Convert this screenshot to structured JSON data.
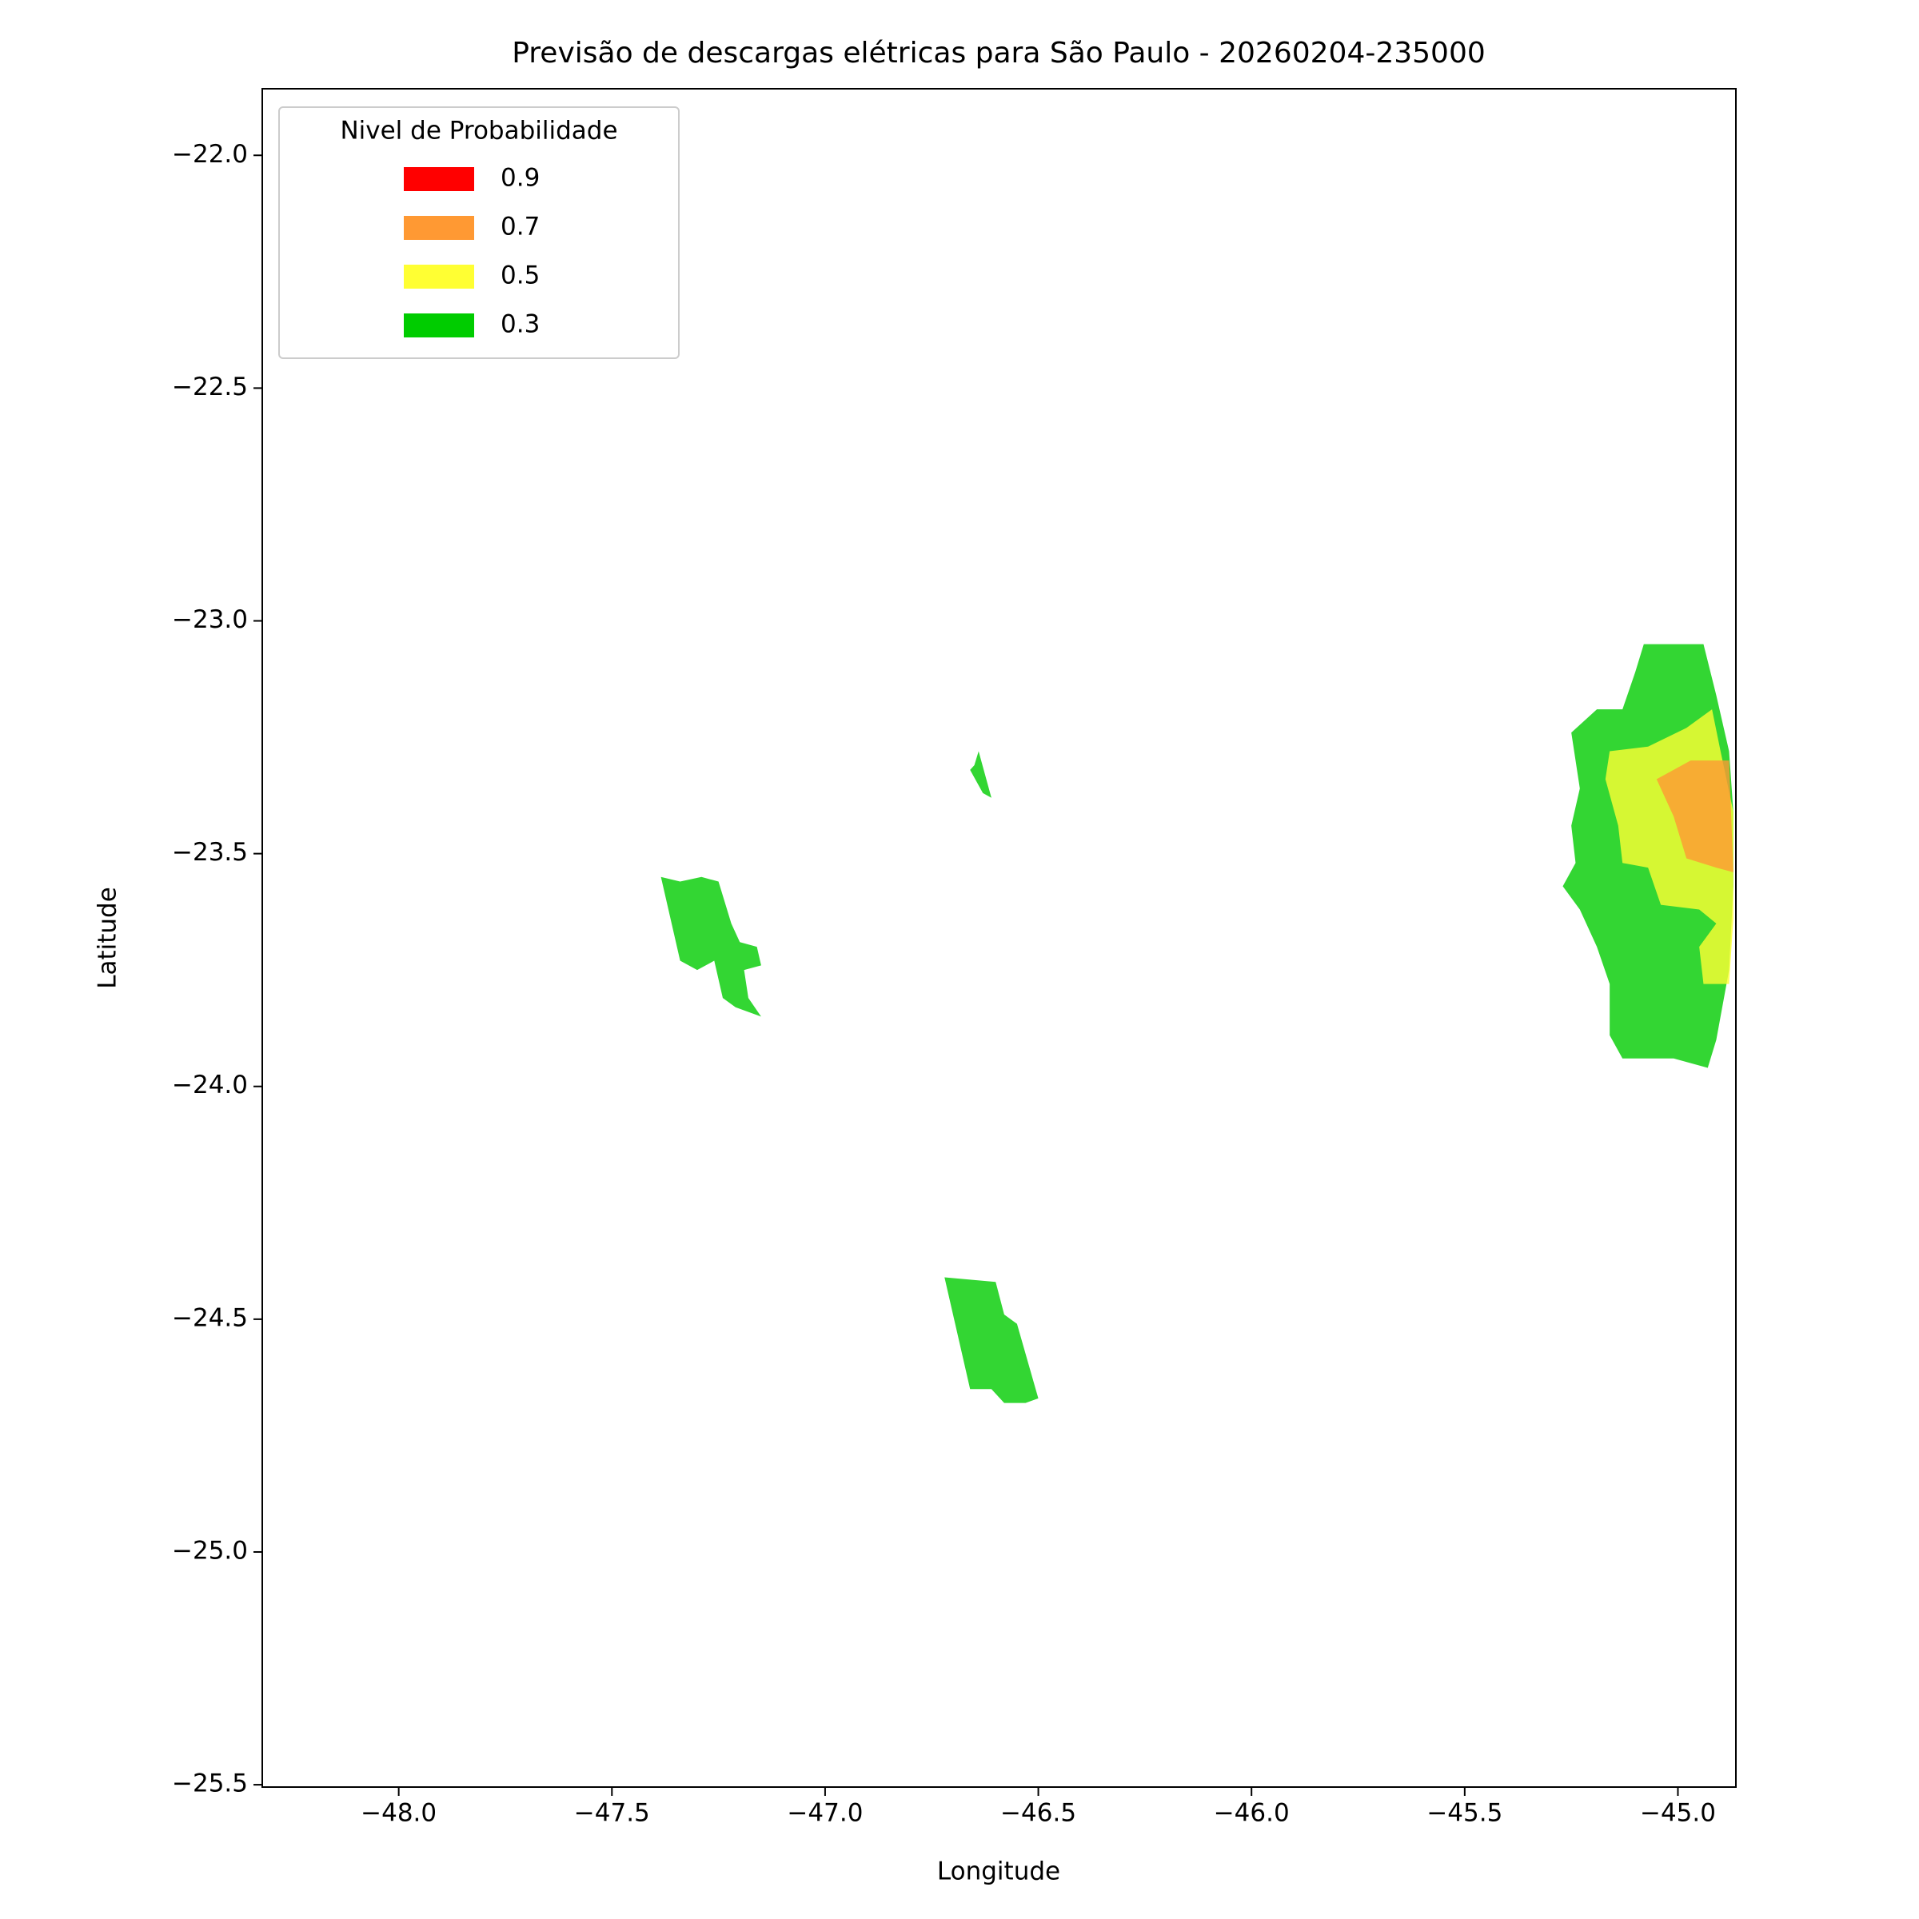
{
  "chart_data": {
    "type": "filled-contour-map",
    "title": "Previsão de descargas elétricas para São Paulo - 20260204-235000",
    "xlabel": "Longitude",
    "ylabel": "Latitude",
    "xlim": [
      -48.32,
      -44.864
    ],
    "ylim": [
      -25.505,
      -21.857
    ],
    "xticks": [
      {
        "value": -48.0,
        "label": "−48.0"
      },
      {
        "value": -47.5,
        "label": "−47.5"
      },
      {
        "value": -47.0,
        "label": "−47.0"
      },
      {
        "value": -46.5,
        "label": "−46.5"
      },
      {
        "value": -46.0,
        "label": "−46.0"
      },
      {
        "value": -45.5,
        "label": "−45.5"
      },
      {
        "value": -45.0,
        "label": "−45.0"
      }
    ],
    "yticks": [
      {
        "value": -22.0,
        "label": "−22.0"
      },
      {
        "value": -22.5,
        "label": "−22.5"
      },
      {
        "value": -23.0,
        "label": "−23.0"
      },
      {
        "value": -23.5,
        "label": "−23.5"
      },
      {
        "value": -24.0,
        "label": "−24.0"
      },
      {
        "value": -24.5,
        "label": "−24.5"
      },
      {
        "value": -25.0,
        "label": "−25.0"
      },
      {
        "value": -25.5,
        "label": "−25.5"
      }
    ],
    "legend": {
      "title": "Nivel de Probabilidade",
      "position": "upper left",
      "entries": [
        {
          "value": 0.9,
          "color": "#ff0000"
        },
        {
          "value": 0.7,
          "color": "#ff9933"
        },
        {
          "value": 0.5,
          "color": "#ffff33"
        },
        {
          "value": 0.3,
          "color": "#00cc00"
        }
      ]
    },
    "regions": [
      {
        "level": 0.3,
        "lon": [
          -45.08,
          -45.03,
          -44.94,
          -44.91,
          -44.88,
          -44.87,
          -44.87,
          -44.88,
          -44.91,
          -44.93,
          -45.01,
          -45.07,
          -45.13,
          -45.16,
          -45.16,
          -45.19,
          -45.23,
          -45.27,
          -45.24,
          -45.25,
          -45.23,
          -45.25,
          -45.19,
          -45.13,
          -45.1
        ],
        "lat": [
          -23.05,
          -23.05,
          -23.05,
          -23.16,
          -23.28,
          -23.41,
          -23.57,
          -23.75,
          -23.9,
          -23.96,
          -23.94,
          -23.94,
          -23.94,
          -23.89,
          -23.78,
          -23.7,
          -23.62,
          -23.57,
          -23.52,
          -23.44,
          -23.36,
          -23.24,
          -23.19,
          -23.19,
          -23.11
        ]
      },
      {
        "level": 0.5,
        "lon": [
          -45.16,
          -45.07,
          -44.98,
          -44.92,
          -44.9,
          -44.87,
          -44.87,
          -44.88,
          -44.94,
          -44.95,
          -44.91,
          -44.95,
          -45.04,
          -45.07,
          -45.13,
          -45.14,
          -45.17
        ],
        "lat": [
          -23.28,
          -23.27,
          -23.23,
          -23.19,
          -23.28,
          -23.41,
          -23.64,
          -23.78,
          -23.78,
          -23.7,
          -23.65,
          -23.62,
          -23.61,
          -23.53,
          -23.52,
          -23.44,
          -23.34
        ]
      },
      {
        "level": 0.7,
        "lon": [
          -45.05,
          -44.97,
          -44.88,
          -44.87,
          -44.91,
          -44.98,
          -45.01
        ],
        "lat": [
          -23.34,
          -23.3,
          -23.3,
          -23.54,
          -23.53,
          -23.51,
          -23.42
        ]
      },
      {
        "level": 0.3,
        "lon": [
          -47.385,
          -47.34,
          -47.29,
          -47.25,
          -47.22,
          -47.2,
          -47.16,
          -47.15,
          -47.19,
          -47.18,
          -47.15,
          -47.21,
          -47.24,
          -47.26,
          -47.3,
          -47.34,
          -47.38
        ],
        "lat": [
          -23.55,
          -23.56,
          -23.55,
          -23.56,
          -23.65,
          -23.69,
          -23.7,
          -23.74,
          -23.75,
          -23.81,
          -23.85,
          -23.83,
          -23.81,
          -23.73,
          -23.75,
          -23.73,
          -23.57
        ]
      },
      {
        "level": 0.3,
        "lon": [
          -46.64,
          -46.61,
          -46.63,
          -46.66,
          -46.65
        ],
        "lat": [
          -23.28,
          -23.38,
          -23.37,
          -23.32,
          -23.31
        ]
      },
      {
        "level": 0.3,
        "lon": [
          -46.72,
          -46.6,
          -46.58,
          -46.55,
          -46.5,
          -46.53,
          -46.58,
          -46.61,
          -46.66
        ],
        "lat": [
          -24.41,
          -24.42,
          -24.49,
          -24.51,
          -24.67,
          -24.68,
          -24.68,
          -24.65,
          -24.65
        ]
      }
    ]
  }
}
